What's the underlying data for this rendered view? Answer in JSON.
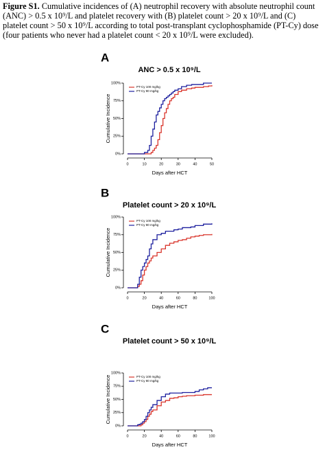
{
  "caption": {
    "label": "Figure S1.",
    "text": "Cumulative incidences of (A) neutrophil recovery with absolute neutrophil count (ANC) > 0.5 x 10⁹/L and platelet recovery with (B) platelet count > 20 x 10⁹/L and (C) platelet count > 50 x 10⁹/L according to total post-transplant cyclophosphamide (PT-Cy) dose (four patients who never had a platelet count < 20 x 10⁹/L were excluded)."
  },
  "chart_data": [
    {
      "type": "step",
      "panel": "A",
      "title": "ANC > 0.5 x 10⁹/L",
      "xlabel": "Days after HCT",
      "ylabel": "Cumulative Incidence",
      "x": [
        0,
        5,
        10,
        12,
        13,
        14,
        15,
        16,
        17,
        18,
        19,
        20,
        21,
        22,
        23,
        24,
        25,
        26,
        27,
        28,
        30,
        32,
        35,
        38,
        40,
        45,
        48,
        50
      ],
      "series": [
        {
          "name": "PT-Cy 100 mg/kg",
          "color": "#d9342b",
          "values": [
            0,
            0,
            0,
            0,
            0,
            2,
            5,
            8,
            12,
            20,
            30,
            40,
            50,
            58,
            64,
            70,
            75,
            78,
            80,
            84,
            88,
            90,
            92,
            93,
            94,
            95,
            96,
            97
          ]
        },
        {
          "name": "PT-Cy 80 mg/kg",
          "color": "#1c1f9e",
          "values": [
            0,
            0,
            2,
            5,
            12,
            25,
            35,
            45,
            55,
            60,
            65,
            70,
            75,
            78,
            80,
            82,
            84,
            86,
            88,
            90,
            92,
            95,
            97,
            98,
            98,
            100,
            100,
            100
          ]
        }
      ],
      "xlim": [
        0,
        50
      ],
      "xticks": [
        0,
        10,
        20,
        30,
        40,
        50
      ],
      "ylim": [
        0,
        100
      ],
      "yticks": [
        {
          "value": 0,
          "label": "0%"
        },
        {
          "value": 25,
          "label": "25%"
        },
        {
          "value": 50,
          "label": "50%"
        },
        {
          "value": 75,
          "label": "75%"
        },
        {
          "value": 100,
          "label": "100%"
        }
      ],
      "legend": "top-left"
    },
    {
      "type": "step",
      "panel": "B",
      "title": "Platelet count > 20 x 10⁹/L",
      "xlabel": "Days after HCT",
      "ylabel": "Cumulative Incidence",
      "x": [
        0,
        10,
        12,
        14,
        16,
        18,
        20,
        22,
        24,
        26,
        28,
        30,
        35,
        40,
        45,
        50,
        55,
        60,
        65,
        70,
        75,
        80,
        85,
        90,
        95,
        100
      ],
      "series": [
        {
          "name": "PT-Cy 100 mg/kg",
          "color": "#d9342b",
          "values": [
            0,
            0,
            2,
            5,
            10,
            18,
            25,
            30,
            35,
            38,
            42,
            45,
            50,
            55,
            60,
            63,
            65,
            67,
            68,
            70,
            72,
            73,
            74,
            75,
            75,
            76
          ]
        },
        {
          "name": "PT-Cy 80 mg/kg",
          "color": "#1c1f9e",
          "values": [
            0,
            0,
            5,
            15,
            25,
            30,
            35,
            40,
            45,
            55,
            62,
            68,
            75,
            77,
            80,
            80,
            82,
            83,
            85,
            85,
            86,
            88,
            88,
            90,
            90,
            91
          ]
        }
      ],
      "xlim": [
        0,
        100
      ],
      "xticks": [
        0,
        20,
        40,
        60,
        80,
        100
      ],
      "ylim": [
        0,
        100
      ],
      "yticks": [
        {
          "value": 0,
          "label": "0%"
        },
        {
          "value": 25,
          "label": "25%"
        },
        {
          "value": 50,
          "label": "50%"
        },
        {
          "value": 75,
          "label": "75%"
        },
        {
          "value": 100,
          "label": "100%"
        }
      ],
      "legend": "top-left"
    },
    {
      "type": "step",
      "panel": "C",
      "title": "Platelet count > 50 x 10⁹/L",
      "xlabel": "Days after HCT",
      "ylabel": "Cumulative Incidence",
      "x": [
        0,
        10,
        12,
        14,
        16,
        18,
        20,
        22,
        24,
        26,
        28,
        30,
        35,
        40,
        45,
        50,
        55,
        60,
        65,
        70,
        75,
        80,
        85,
        90,
        95,
        100
      ],
      "series": [
        {
          "name": "PT-Cy 100 mg/kg",
          "color": "#d9342b",
          "values": [
            0,
            0,
            0,
            0,
            2,
            5,
            8,
            12,
            18,
            22,
            27,
            30,
            38,
            45,
            48,
            52,
            53,
            55,
            56,
            57,
            57,
            58,
            58,
            59,
            59,
            59
          ]
        },
        {
          "name": "PT-Cy 80 mg/kg",
          "color": "#1c1f9e",
          "values": [
            0,
            0,
            2,
            3,
            5,
            8,
            12,
            18,
            25,
            30,
            35,
            40,
            48,
            55,
            60,
            62,
            62,
            62,
            63,
            63,
            63,
            65,
            68,
            70,
            72,
            72
          ]
        }
      ],
      "xlim": [
        0,
        100
      ],
      "xticks": [
        0,
        20,
        40,
        60,
        80,
        100
      ],
      "ylim": [
        0,
        100
      ],
      "yticks": [
        {
          "value": 0,
          "label": "0%"
        },
        {
          "value": 25,
          "label": "25%"
        },
        {
          "value": 50,
          "label": "50%"
        },
        {
          "value": 75,
          "label": "75%"
        },
        {
          "value": 100,
          "label": "100%"
        }
      ],
      "legend": "top-left"
    }
  ]
}
